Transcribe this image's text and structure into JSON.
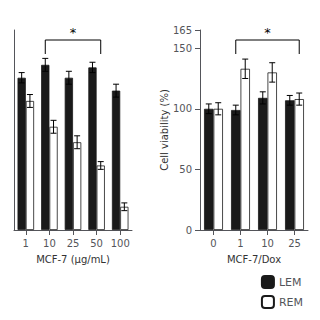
{
  "chart_data": [
    {
      "type": "bar",
      "categories": [
        "1",
        "10",
        "25",
        "50",
        "100"
      ],
      "xlabel": "MCF-7 (μg/mL)",
      "ylim": [
        0,
        155
      ],
      "tick_labels": "x",
      "grid": false,
      "series": [
        {
          "name": "LEM",
          "color": "#1a1a1a",
          "values": [
            118,
            128,
            118,
            126,
            108
          ],
          "errors": [
            4,
            5,
            5,
            4,
            5
          ]
        },
        {
          "name": "REM",
          "color": "#ffffff",
          "values": [
            100,
            80,
            68,
            50,
            18
          ],
          "errors": [
            5,
            5,
            5,
            3,
            3
          ]
        }
      ],
      "annotations": [
        {
          "text": "*",
          "from": "10",
          "to": "50"
        }
      ]
    },
    {
      "type": "bar",
      "categories": [
        "0",
        "1",
        "10",
        "25"
      ],
      "xlabel": "MCF-7/Dox",
      "ylabel": "Cell viability (%)",
      "ylim": [
        0,
        165
      ],
      "yticks": [
        0,
        50,
        100,
        150
      ],
      "grid": false,
      "legend": "lower right",
      "series": [
        {
          "name": "LEM",
          "color": "#1a1a1a",
          "values": [
            100,
            99,
            109,
            107
          ],
          "errors": [
            4,
            4,
            5,
            4
          ]
        },
        {
          "name": "REM",
          "color": "#ffffff",
          "values": [
            100,
            133,
            130,
            108
          ],
          "errors": [
            5,
            8,
            8,
            5
          ]
        }
      ],
      "annotations": [
        {
          "text": "*",
          "from": "1",
          "to": "25"
        }
      ]
    }
  ]
}
